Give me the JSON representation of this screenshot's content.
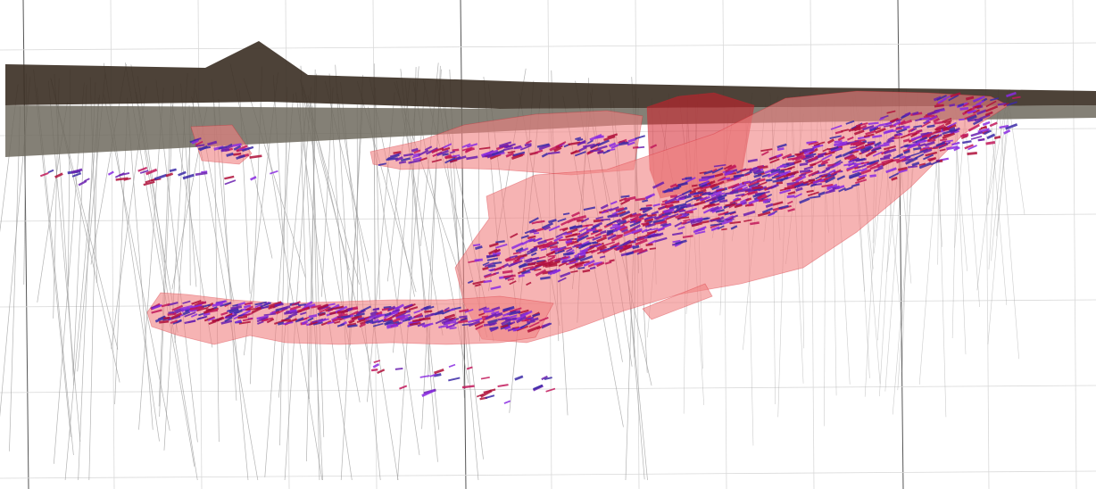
{
  "scene": {
    "background_color": "#ffffff",
    "grid_major_color": "#555555",
    "grid_minor_color": "#d9d9d9",
    "terrain_color": "#3a2e22",
    "terrain_fill_opacity": 0.9,
    "overburden_color": "#6f6a5e",
    "orebody_color": "#f08080",
    "orebody_dark_color": "#d41f2a",
    "drillhole_color": "#9a9a9a",
    "assay_colors": [
      "#6a1fb0",
      "#8a2be2",
      "#b0103a",
      "#3b2aa8",
      "#c2185b"
    ]
  }
}
